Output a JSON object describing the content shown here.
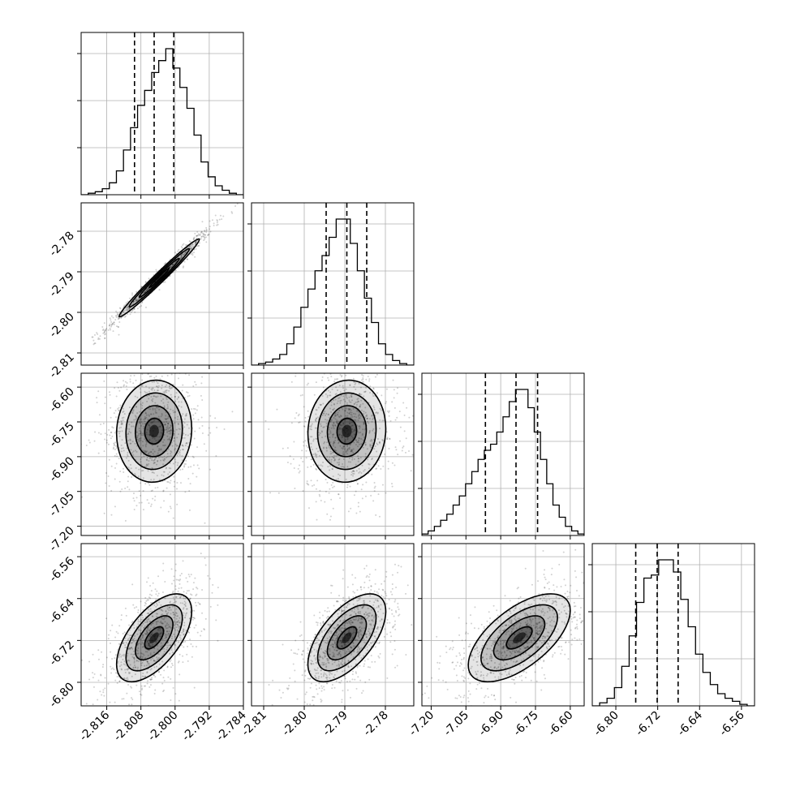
{
  "chart_data": {
    "type": "corner",
    "grid": true,
    "parameters": [
      {
        "ticks": [
          "-2.816",
          "-2.808",
          "-2.800",
          "-2.792",
          "-2.784"
        ],
        "range": [
          -2.822,
          -2.784
        ],
        "quantiles": [
          -2.8095,
          -2.8049,
          -2.8003
        ],
        "hist": [
          0,
          1,
          2,
          4,
          8,
          16,
          30,
          45,
          60,
          70,
          82,
          90,
          98,
          85,
          72,
          58,
          40,
          22,
          12,
          6,
          3,
          1,
          0
        ]
      },
      {
        "ticks": [
          "-2.81",
          "-2.80",
          "-2.79",
          "-2.78"
        ],
        "range": [
          -2.813,
          -2.773
        ],
        "quantiles": [
          -2.7946,
          -2.7895,
          -2.7846
        ],
        "hist": [
          0,
          1,
          2,
          4,
          7,
          14,
          25,
          38,
          50,
          62,
          72,
          84,
          96,
          96,
          80,
          62,
          44,
          28,
          14,
          7,
          3,
          1,
          0
        ]
      },
      {
        "ticks": [
          "-7.20",
          "-7.05",
          "-6.90",
          "-6.75",
          "-6.60"
        ],
        "range": [
          -7.24,
          -6.54
        ],
        "quantiles": [
          -6.966,
          -6.834,
          -6.741
        ],
        "hist": [
          1,
          3,
          6,
          10,
          14,
          20,
          26,
          34,
          42,
          50,
          56,
          60,
          68,
          78,
          88,
          96,
          96,
          84,
          68,
          50,
          34,
          20,
          12,
          6,
          3,
          1
        ]
      },
      {
        "ticks": [
          "-6.80",
          "-6.72",
          "-6.64",
          "-6.56"
        ],
        "range": [
          -6.845,
          -6.535
        ],
        "quantiles": [
          -6.762,
          -6.721,
          -6.681
        ],
        "hist": [
          0,
          2,
          5,
          12,
          26,
          46,
          68,
          84,
          86,
          96,
          96,
          88,
          70,
          52,
          34,
          22,
          14,
          8,
          5,
          3,
          1,
          0
        ]
      }
    ],
    "pairs": [
      {
        "row": 1,
        "col": 0,
        "center": [
          -2.8037,
          -2.7915
        ],
        "sx": 0.0047,
        "sy": 0.0048,
        "rho": 0.985
      },
      {
        "row": 2,
        "col": 0,
        "center": [
          -2.8049,
          -6.79
        ],
        "sx": 0.0044,
        "sy": 0.11,
        "rho": 0.05
      },
      {
        "row": 2,
        "col": 1,
        "center": [
          -2.7895,
          -6.79
        ],
        "sx": 0.0048,
        "sy": 0.11,
        "rho": 0.05
      },
      {
        "row": 3,
        "col": 0,
        "center": [
          -2.8049,
          -6.715
        ],
        "sx": 0.0044,
        "sy": 0.042,
        "rho": 0.6
      },
      {
        "row": 3,
        "col": 1,
        "center": [
          -2.7895,
          -6.715
        ],
        "sx": 0.0048,
        "sy": 0.042,
        "rho": 0.6
      },
      {
        "row": 3,
        "col": 2,
        "center": [
          -6.82,
          -6.715
        ],
        "sx": 0.11,
        "sy": 0.042,
        "rho": 0.62
      }
    ]
  }
}
